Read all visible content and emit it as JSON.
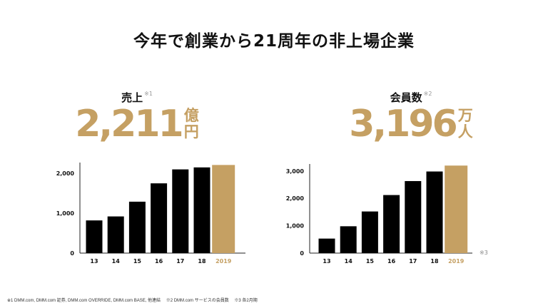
{
  "title": "今年で創業から21周年の非上場企業",
  "left": {
    "label": "売上",
    "label_note": "※1",
    "value": "2,211",
    "unit_top": "億",
    "unit_bottom": "円"
  },
  "right": {
    "label": "会員数",
    "label_note": "※2",
    "value": "3,196",
    "unit_top": "万",
    "unit_bottom": "人",
    "chart_note": "※3"
  },
  "footnote": "※1 DMM.com, DMM.com 証券, DMM.com OVERRIDE, DMM.com BASE, 他連結　 ※2 DMM.com サービスの会員数　 ※3 各2月期",
  "colors": {
    "bar": "#000000",
    "highlight": "#c5a063",
    "axis_text": "#111111"
  },
  "chart_data": [
    {
      "type": "bar",
      "categories": [
        "13",
        "14",
        "15",
        "16",
        "17",
        "18",
        "2019"
      ],
      "values": [
        820,
        920,
        1290,
        1750,
        2100,
        2150,
        2211
      ],
      "highlight_index": 6,
      "ylim": [
        0,
        2200
      ],
      "yticks": [
        0,
        1000,
        2000
      ],
      "ytick_labels": [
        "0",
        "1,000",
        "2,000"
      ],
      "grid": false
    },
    {
      "type": "bar",
      "categories": [
        "13",
        "14",
        "15",
        "16",
        "17",
        "18",
        "2019"
      ],
      "values": [
        530,
        980,
        1520,
        2120,
        2630,
        2980,
        3196
      ],
      "highlight_index": 6,
      "ylim": [
        0,
        3150
      ],
      "yticks": [
        0,
        1000,
        2000,
        3000
      ],
      "ytick_labels": [
        "0",
        "1,000",
        "2,000",
        "3,000"
      ],
      "grid": false
    }
  ]
}
